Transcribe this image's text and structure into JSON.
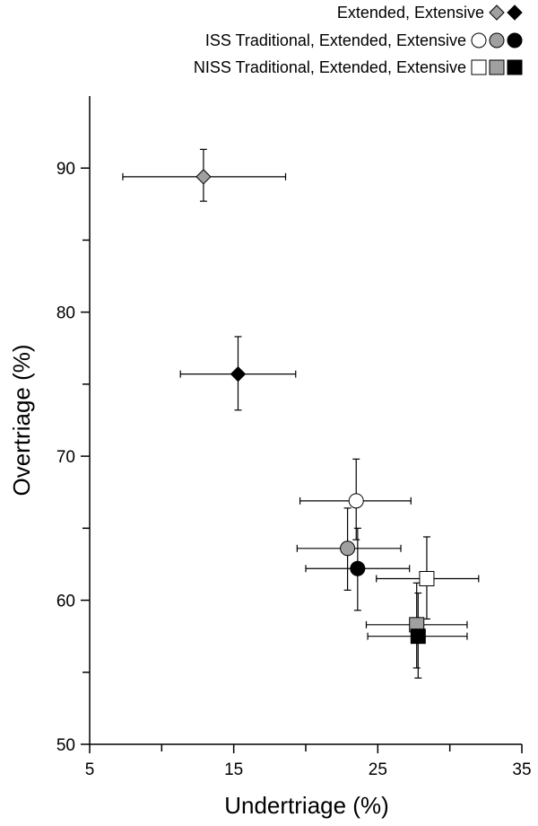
{
  "chart_data": {
    "type": "scatter",
    "xlabel": "Undertriage (%)",
    "ylabel": "Overtriage (%)",
    "xlim": [
      5,
      35
    ],
    "ylim": [
      50,
      95
    ],
    "x_ticks": [
      5,
      15,
      25,
      35
    ],
    "x_tick_labels": [
      "5",
      "15",
      "25",
      "35"
    ],
    "x_minor_ticks": [
      10,
      20,
      30
    ],
    "y_ticks": [
      50,
      60,
      70,
      80,
      90
    ],
    "y_tick_labels": [
      "50",
      "60",
      "70",
      "80",
      "90"
    ],
    "y_minor_ticks": [
      55,
      65,
      75,
      85
    ],
    "grid": false,
    "legend_position": "top-right",
    "legend": [
      {
        "label": "Extended, Extensive",
        "marker": "diamond",
        "fills": [
          "#a0a0a0",
          "#000000"
        ]
      },
      {
        "label": "ISS Traditional, Extended, Extensive",
        "marker": "circle",
        "fills": [
          "#ffffff",
          "#a0a0a0",
          "#000000"
        ]
      },
      {
        "label": "NISS Traditional, Extended, Extensive",
        "marker": "square",
        "fills": [
          "#ffffff",
          "#a0a0a0",
          "#000000"
        ]
      }
    ],
    "points": [
      {
        "marker": "diamond",
        "fill": "#a0a0a0",
        "x": 12.9,
        "y": 89.4,
        "x_err": [
          7.3,
          18.6
        ],
        "y_err": [
          87.7,
          91.3
        ]
      },
      {
        "marker": "diamond",
        "fill": "#000000",
        "x": 15.3,
        "y": 75.7,
        "x_err": [
          11.3,
          19.3
        ],
        "y_err": [
          73.2,
          78.3
        ]
      },
      {
        "marker": "circle",
        "fill": "#ffffff",
        "x": 23.5,
        "y": 66.9,
        "x_err": [
          19.6,
          27.3
        ],
        "y_err": [
          64.2,
          69.8
        ]
      },
      {
        "marker": "circle",
        "fill": "#a0a0a0",
        "x": 22.9,
        "y": 63.6,
        "x_err": [
          19.4,
          26.6
        ],
        "y_err": [
          60.7,
          66.4
        ]
      },
      {
        "marker": "circle",
        "fill": "#000000",
        "x": 23.6,
        "y": 62.2,
        "x_err": [
          20.0,
          27.2
        ],
        "y_err": [
          59.3,
          65.0
        ]
      },
      {
        "marker": "square",
        "fill": "#ffffff",
        "x": 28.4,
        "y": 61.5,
        "x_err": [
          24.9,
          32.0
        ],
        "y_err": [
          58.7,
          64.4
        ]
      },
      {
        "marker": "square",
        "fill": "#a0a0a0",
        "x": 27.7,
        "y": 58.3,
        "x_err": [
          24.2,
          31.2
        ],
        "y_err": [
          55.3,
          61.2
        ]
      },
      {
        "marker": "square",
        "fill": "#000000",
        "x": 27.8,
        "y": 57.5,
        "x_err": [
          24.3,
          31.2
        ],
        "y_err": [
          54.6,
          60.5
        ]
      }
    ]
  }
}
